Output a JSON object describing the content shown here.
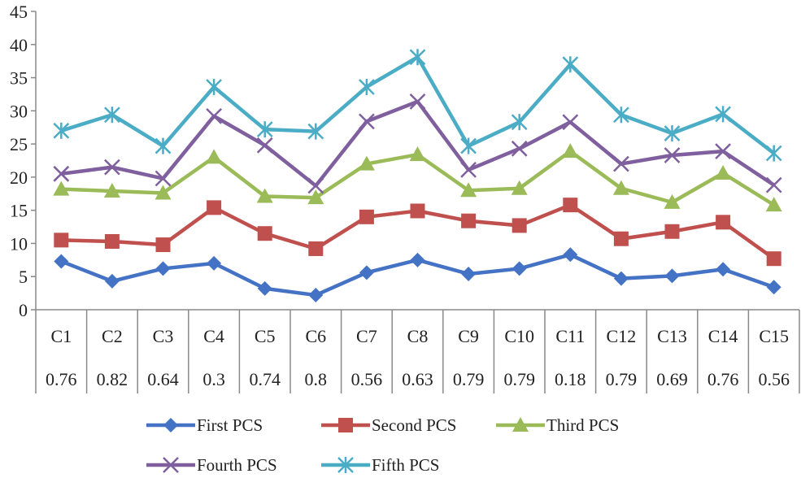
{
  "chart_data": {
    "type": "line",
    "title": "",
    "xlabel": "",
    "ylabel": "",
    "ylim": [
      0,
      45
    ],
    "yticks": [
      "0",
      "5",
      "10",
      "15",
      "20",
      "25",
      "30",
      "35",
      "40",
      "45"
    ],
    "categories": [
      "C1",
      "C2",
      "C3",
      "C4",
      "C5",
      "C6",
      "C7",
      "C8",
      "C9",
      "C10",
      "C11",
      "C12",
      "C13",
      "C14",
      "C15"
    ],
    "category_values": [
      "0.76",
      "0.82",
      "0.64",
      "0.3",
      "0.74",
      "0.8",
      "0.56",
      "0.63",
      "0.79",
      "0.79",
      "0.18",
      "0.79",
      "0.69",
      "0.76",
      "0.56"
    ],
    "legend_position": "bottom",
    "series": [
      {
        "name": "First PCS",
        "color": "#4472C4",
        "marker": "diamond",
        "values": [
          7.3,
          4.3,
          6.2,
          7.0,
          3.2,
          2.2,
          5.6,
          7.5,
          5.4,
          6.2,
          8.3,
          4.7,
          5.1,
          6.1,
          3.4
        ]
      },
      {
        "name": "Second PCS",
        "color": "#C0504D",
        "marker": "square",
        "values": [
          10.5,
          10.3,
          9.8,
          15.4,
          11.5,
          9.2,
          14.0,
          14.9,
          13.4,
          12.7,
          15.8,
          10.7,
          11.8,
          13.2,
          7.7
        ]
      },
      {
        "name": "Third PCS",
        "color": "#9BBB59",
        "marker": "triangle",
        "values": [
          18.2,
          17.9,
          17.6,
          23.0,
          17.1,
          16.9,
          22.0,
          23.4,
          18.0,
          18.3,
          23.9,
          18.3,
          16.2,
          20.6,
          15.8
        ]
      },
      {
        "name": "Fourth PCS",
        "color": "#7F5F9E",
        "marker": "x",
        "values": [
          20.5,
          21.5,
          19.8,
          29.2,
          24.8,
          18.7,
          28.4,
          31.4,
          21.1,
          24.3,
          28.3,
          22.0,
          23.3,
          23.9,
          18.8
        ]
      },
      {
        "name": "Fifth PCS",
        "color": "#4BACC6",
        "marker": "star",
        "values": [
          27.0,
          29.4,
          24.7,
          33.6,
          27.2,
          26.9,
          33.6,
          38.1,
          24.7,
          28.3,
          37.0,
          29.4,
          26.6,
          29.5,
          23.6
        ]
      }
    ]
  }
}
